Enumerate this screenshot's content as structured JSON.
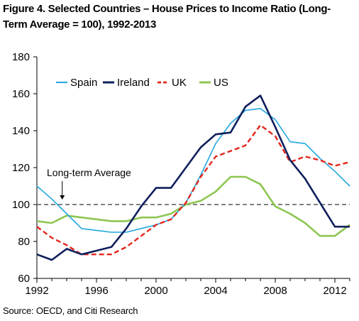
{
  "chart_data": {
    "type": "line",
    "title": "Figure 4. Selected Countries – House Prices to Income Ratio (Long-Term Average = 100), 1992-2013",
    "source": "Source: OECD, and Citi Research",
    "xlim": [
      1992,
      2013
    ],
    "ylim": [
      60,
      180
    ],
    "x_ticks": [
      1992,
      1996,
      2000,
      2004,
      2008,
      2012
    ],
    "x_tick_labels": [
      "1992",
      "1996",
      "2000",
      "2004",
      "2008",
      "2012"
    ],
    "y_ticks": [
      60,
      80,
      100,
      120,
      140,
      160,
      180
    ],
    "y_tick_labels": [
      "60",
      "80",
      "100",
      "120",
      "140",
      "160",
      "180"
    ],
    "grid": false,
    "legend_position": "top-left",
    "x": [
      1992,
      1993,
      1994,
      1995,
      1996,
      1997,
      1998,
      1999,
      2000,
      2001,
      2002,
      2003,
      2004,
      2005,
      2006,
      2007,
      2008,
      2009,
      2010,
      2011,
      2012,
      2013
    ],
    "series": [
      {
        "name": "Spain",
        "color": "#22a7e0",
        "dash": "solid",
        "width": 1.6,
        "values": [
          110,
          103,
          95,
          87,
          86,
          85,
          85,
          87,
          89,
          92,
          101,
          116,
          133,
          144,
          151,
          152,
          146,
          134,
          133,
          125,
          118,
          110
        ]
      },
      {
        "name": "Ireland",
        "color": "#0f1f5c",
        "dash": "solid",
        "width": 2.6,
        "values": [
          73,
          70,
          76,
          73,
          75,
          77,
          87,
          99,
          109,
          109,
          120,
          131,
          138,
          139,
          153,
          159,
          142,
          124,
          114,
          101,
          88,
          88
        ]
      },
      {
        "name": "UK",
        "color": "#e3261d",
        "dash": "dashed",
        "width": 2.4,
        "values": [
          88,
          82,
          78,
          73,
          73,
          73,
          77,
          83,
          89,
          92,
          101,
          115,
          126,
          129,
          132,
          143,
          137,
          123,
          126,
          124,
          121,
          123
        ]
      },
      {
        "name": "US",
        "color": "#8dc651",
        "dash": "solid",
        "width": 2.6,
        "values": [
          91,
          90,
          94,
          93,
          92,
          91,
          91,
          93,
          93,
          95,
          100,
          102,
          107,
          115,
          115,
          111,
          99,
          95,
          90,
          83,
          83,
          89
        ]
      }
    ],
    "reference_line": {
      "y": 100,
      "label": "Long-term Average",
      "color": "#808080"
    }
  }
}
